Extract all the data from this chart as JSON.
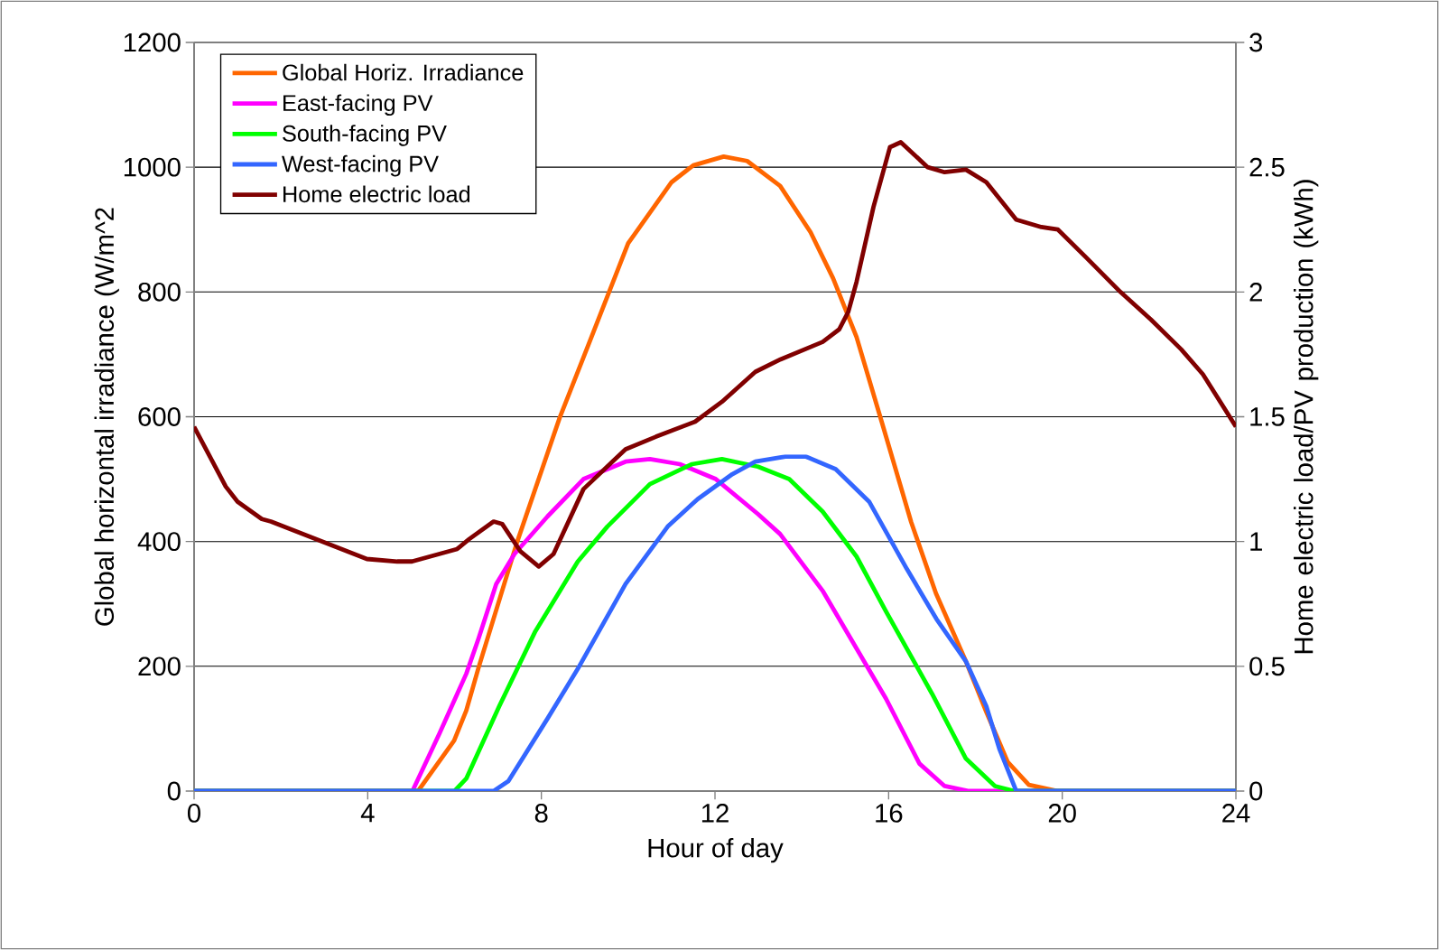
{
  "chart_data": {
    "type": "line",
    "xlabel": "Hour of day",
    "ylabel": "Global horizontal irradiance (W/m^2",
    "y2label": "Home electric load/PV production (kWh)",
    "xlim": [
      0,
      24
    ],
    "xticks": [
      0,
      4,
      8,
      12,
      16,
      20,
      24
    ],
    "ylim": [
      0,
      1200
    ],
    "yticks": [
      0,
      200,
      400,
      600,
      800,
      1000,
      1200
    ],
    "y2lim": [
      0,
      3
    ],
    "y2ticks": [
      0,
      0.5,
      1,
      1.5,
      2,
      2.5,
      3
    ],
    "grid": "y",
    "legend": "top left",
    "marker": "none",
    "line_style": "solid",
    "series": [
      {
        "name": "Global Horiz. Irradiance",
        "color": "#ff6600",
        "x": [
          0,
          5.16,
          5.99,
          6.27,
          6.55,
          7.44,
          8.42,
          9.1,
          10,
          11,
          11.5,
          12.2,
          12.74,
          13.5,
          14.2,
          14.72,
          15.26,
          15.84,
          16.52,
          17.09,
          17.78,
          18.25,
          18.74,
          19.23,
          19.9,
          24
        ],
        "values": [
          0,
          0,
          81,
          129,
          197,
          399,
          598,
          718,
          878,
          976,
          1003,
          1017,
          1010,
          970,
          896,
          822,
          728,
          592,
          431,
          317,
          208,
          127,
          47,
          10,
          0,
          0
        ]
      },
      {
        "name": "East-facing PV",
        "color": "#ff00ff",
        "axis": "y2",
        "x": [
          0,
          5.03,
          5.65,
          6.27,
          6.55,
          6.96,
          7.38,
          8.14,
          8.97,
          9.94,
          10.5,
          11.19,
          12.02,
          12.99,
          13.5,
          14.49,
          15.94,
          16.71,
          17.29,
          17.85,
          24
        ],
        "values": [
          0,
          0,
          0.23,
          0.47,
          0.61,
          0.83,
          0.95,
          1.1,
          1.25,
          1.32,
          1.33,
          1.31,
          1.25,
          1.11,
          1.03,
          0.8,
          0.37,
          0.11,
          0.02,
          0,
          0
        ]
      },
      {
        "name": "South-facing PV",
        "color": "#00ff00",
        "axis": "y2",
        "x": [
          0,
          6.0,
          6.27,
          7.03,
          7.86,
          8.84,
          9.52,
          10.5,
          11.47,
          12.16,
          12.99,
          13.71,
          14.48,
          15.26,
          15.94,
          17.0,
          17.78,
          18.45,
          18.9,
          24
        ],
        "values": [
          0,
          0,
          0.05,
          0.34,
          0.64,
          0.92,
          1.06,
          1.23,
          1.31,
          1.33,
          1.3,
          1.25,
          1.12,
          0.94,
          0.72,
          0.39,
          0.13,
          0.02,
          0,
          0
        ]
      },
      {
        "name": "West-facing PV",
        "color": "#3366ff",
        "axis": "y2",
        "x": [
          0,
          6.9,
          7.24,
          8.14,
          8.84,
          9.94,
          10.91,
          11.6,
          12.4,
          12.93,
          13.62,
          14.1,
          14.78,
          15.55,
          16.42,
          17.1,
          17.78,
          18.25,
          18.55,
          18.94,
          24
        ],
        "values": [
          0,
          0,
          0.04,
          0.29,
          0.49,
          0.83,
          1.06,
          1.17,
          1.27,
          1.32,
          1.34,
          1.34,
          1.29,
          1.16,
          0.89,
          0.69,
          0.52,
          0.34,
          0.17,
          0,
          0
        ]
      },
      {
        "name": "Home electric load",
        "color": "#800000",
        "axis": "y2",
        "x": [
          0,
          0.73,
          1.0,
          1.56,
          1.77,
          3.98,
          4.68,
          5.02,
          6.06,
          6.34,
          6.9,
          7.1,
          7.52,
          7.94,
          8.28,
          8.97,
          9.94,
          10.64,
          11.54,
          12.16,
          12.93,
          13.51,
          14.48,
          14.86,
          15.07,
          15.26,
          15.65,
          16.03,
          16.28,
          16.9,
          17.29,
          17.78,
          18.25,
          18.94,
          19.52,
          19.9,
          20.54,
          21.34,
          22.04,
          22.74,
          23.24,
          24
        ],
        "values": [
          1.46,
          1.22,
          1.16,
          1.09,
          1.08,
          0.93,
          0.92,
          0.92,
          0.97,
          1.01,
          1.08,
          1.07,
          0.96,
          0.9,
          0.95,
          1.21,
          1.37,
          1.42,
          1.48,
          1.56,
          1.68,
          1.73,
          1.8,
          1.85,
          1.92,
          2.04,
          2.34,
          2.58,
          2.6,
          2.5,
          2.48,
          2.49,
          2.44,
          2.29,
          2.26,
          2.25,
          2.14,
          2.0,
          1.89,
          1.77,
          1.67,
          1.46
        ]
      }
    ]
  }
}
